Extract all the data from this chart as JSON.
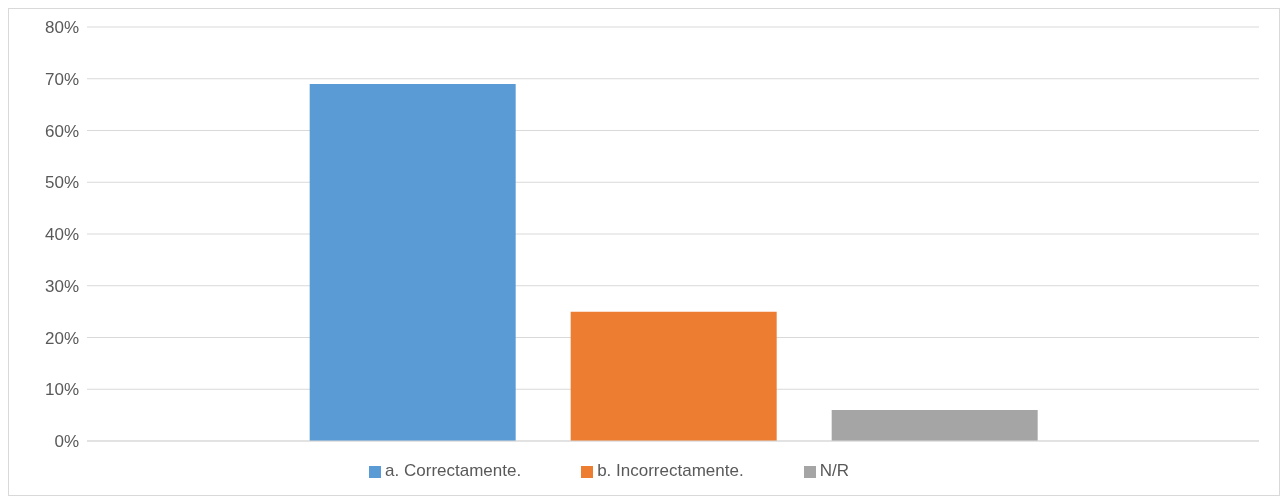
{
  "chart_data": {
    "type": "bar",
    "categories": [
      null
    ],
    "series": [
      {
        "name": "a. Correctamente.",
        "color": "#5b9bd5",
        "values": [
          69
        ]
      },
      {
        "name": "b. Incorrectamente.",
        "color": "#ed7d31",
        "values": [
          25
        ]
      },
      {
        "name": "N/R",
        "color": "#a5a5a5",
        "values": [
          6
        ]
      }
    ],
    "ylim": [
      0,
      80
    ],
    "yticks": [
      {
        "value": 0,
        "label": "0%"
      },
      {
        "value": 10,
        "label": "10%"
      },
      {
        "value": 20,
        "label": "20%"
      },
      {
        "value": 30,
        "label": "30%"
      },
      {
        "value": 40,
        "label": "40%"
      },
      {
        "value": 50,
        "label": "50%"
      },
      {
        "value": 60,
        "label": "60%"
      },
      {
        "value": 70,
        "label": "70%"
      },
      {
        "value": 80,
        "label": "80%"
      }
    ],
    "grid": "y",
    "legend": "bottom"
  }
}
